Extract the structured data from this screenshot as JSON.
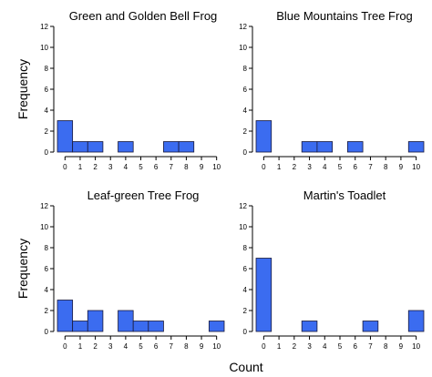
{
  "chart_data": [
    {
      "type": "bar",
      "title": "Green and Golden Bell Frog",
      "categories": [
        "0",
        "1",
        "2",
        "3",
        "4",
        "5",
        "6",
        "7",
        "8",
        "9",
        "10"
      ],
      "values": [
        3,
        1,
        1,
        0,
        1,
        0,
        0,
        1,
        1,
        0,
        0
      ],
      "ylabel": "Frequency",
      "xlabel": "",
      "ylim": [
        0,
        12
      ],
      "yticks": [
        "0",
        "2",
        "4",
        "6",
        "8",
        "10",
        "12"
      ],
      "grid": false
    },
    {
      "type": "bar",
      "title": "Blue Mountains Tree Frog",
      "categories": [
        "0",
        "1",
        "2",
        "3",
        "4",
        "5",
        "6",
        "7",
        "8",
        "9",
        "10"
      ],
      "values": [
        3,
        0,
        0,
        1,
        1,
        0,
        1,
        0,
        0,
        0,
        1
      ],
      "ylabel": "",
      "xlabel": "",
      "ylim": [
        0,
        12
      ],
      "yticks": [
        "0",
        "2",
        "4",
        "6",
        "8",
        "10",
        "12"
      ],
      "grid": false
    },
    {
      "type": "bar",
      "title": "Leaf-green Tree Frog",
      "categories": [
        "0",
        "1",
        "2",
        "3",
        "4",
        "5",
        "6",
        "7",
        "8",
        "9",
        "10"
      ],
      "values": [
        3,
        1,
        2,
        0,
        2,
        1,
        1,
        0,
        0,
        0,
        1
      ],
      "ylabel": "Frequency",
      "xlabel": "",
      "ylim": [
        0,
        12
      ],
      "yticks": [
        "0",
        "2",
        "4",
        "6",
        "8",
        "10",
        "12"
      ],
      "grid": false
    },
    {
      "type": "bar",
      "title": "Martin's Toadlet",
      "categories": [
        "0",
        "1",
        "2",
        "3",
        "4",
        "5",
        "6",
        "7",
        "8",
        "9",
        "10"
      ],
      "values": [
        7,
        0,
        0,
        1,
        0,
        0,
        0,
        1,
        0,
        0,
        2
      ],
      "ylabel": "",
      "xlabel": "",
      "ylim": [
        0,
        12
      ],
      "yticks": [
        "0",
        "2",
        "4",
        "6",
        "8",
        "10",
        "12"
      ],
      "grid": false
    }
  ],
  "shared_xlabel": "Count",
  "colors": {
    "bar_fill": "#3b6cf0",
    "bar_stroke": "#1a1a3a",
    "axis": "#000000"
  }
}
